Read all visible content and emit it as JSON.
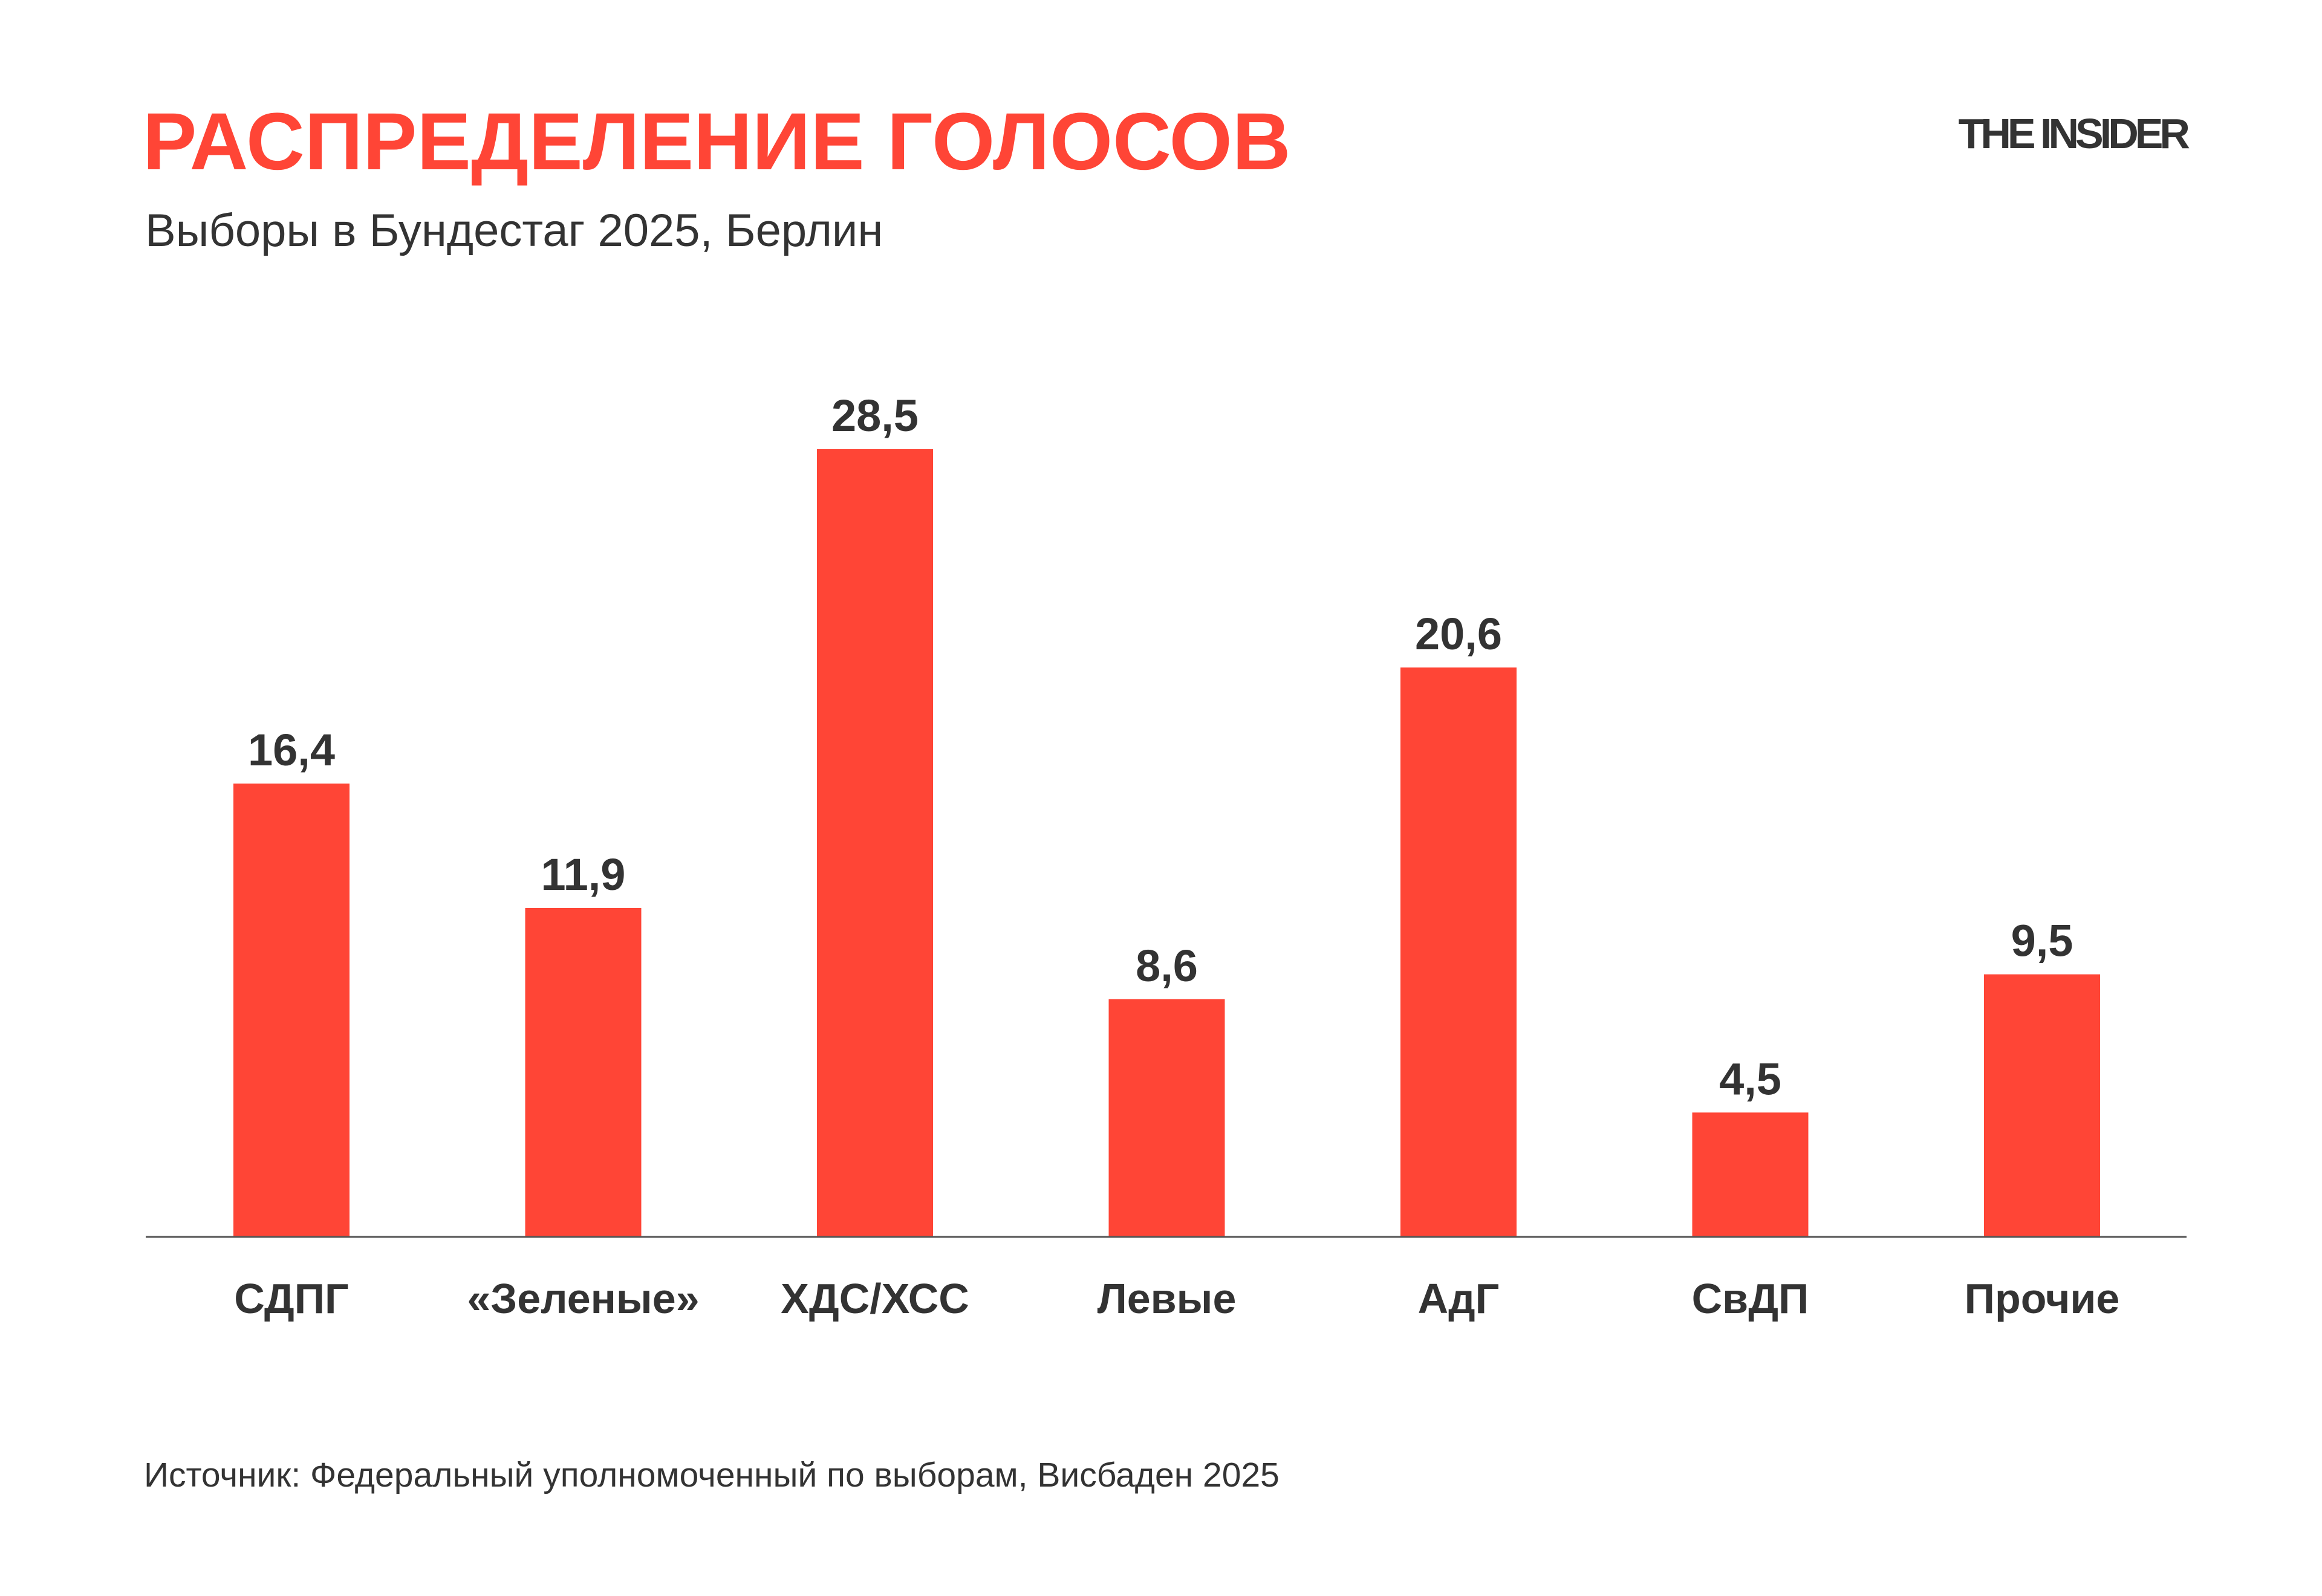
{
  "header": {
    "title": "РАСПРЕДЕЛЕНИЕ ГОЛОСОВ",
    "subtitle": "Выборы в Бундестаг 2025, Берлин",
    "logo": "THE INSIDER"
  },
  "footer": {
    "source": "Источник: Федеральный уполномоченный по выборам, Висбаден 2025"
  },
  "colors": {
    "bar": "#ff4536",
    "text": "#333333",
    "axis": "#555555"
  },
  "chart_data": {
    "type": "bar",
    "title": "РАСПРЕДЕЛЕНИЕ ГОЛОСОВ",
    "subtitle": "Выборы в Бундестаг 2025, Берлин",
    "categories": [
      "СДПГ",
      "«Зеленые»",
      "ХДС/ХСС",
      "Левые",
      "АдГ",
      "СвДП",
      "Прочие"
    ],
    "values": [
      16.4,
      11.9,
      28.5,
      8.6,
      20.6,
      4.5,
      9.5
    ],
    "value_labels": [
      "16,4",
      "11,9",
      "28,5",
      "8,6",
      "20,6",
      "4,5",
      "9,5"
    ],
    "xlabel": "",
    "ylabel": "",
    "ylim": [
      0,
      28.5
    ],
    "grid": false,
    "legend": "none"
  }
}
